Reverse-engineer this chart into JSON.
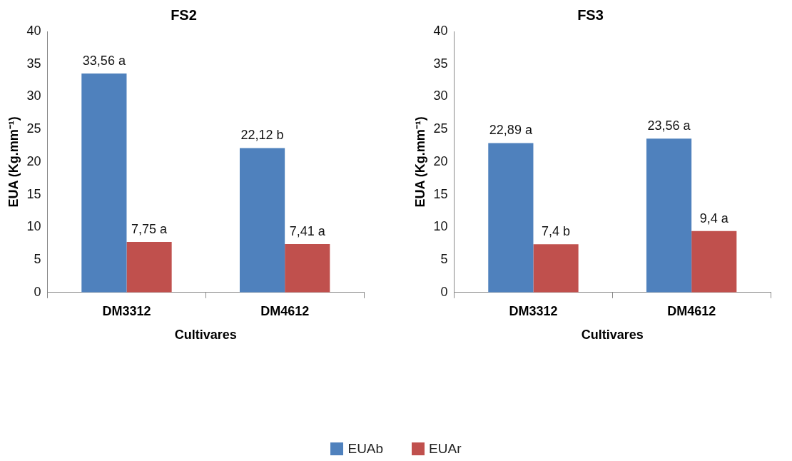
{
  "chart_data": [
    {
      "type": "bar",
      "title": "FS2",
      "xlabel": "Cultivares",
      "ylabel": "EUA (Kg.mm⁻¹)",
      "categories": [
        "DM3312",
        "DM4612"
      ],
      "ylim": [
        0,
        40
      ],
      "yticks": [
        0,
        5,
        10,
        15,
        20,
        25,
        30,
        35,
        40
      ],
      "grid": false,
      "legend": "bottom",
      "series": [
        {
          "name": "EUAb",
          "color": "#4f81bd",
          "values": [
            33.56,
            22.12
          ],
          "value_labels": [
            "33,56 a",
            "22,12 b"
          ]
        },
        {
          "name": "EUAr",
          "color": "#c0504d",
          "values": [
            7.75,
            7.41
          ],
          "value_labels": [
            "7,75 a",
            "7,41 a"
          ]
        }
      ]
    },
    {
      "type": "bar",
      "title": "FS3",
      "xlabel": "Cultivares",
      "ylabel": "EUA (Kg.mm⁻¹)",
      "categories": [
        "DM3312",
        "DM4612"
      ],
      "ylim": [
        0,
        40
      ],
      "yticks": [
        0,
        5,
        10,
        15,
        20,
        25,
        30,
        35,
        40
      ],
      "grid": false,
      "series": [
        {
          "color": "#4f81bd",
          "values": [
            22.89,
            23.56
          ],
          "value_labels": [
            "22,89 a",
            "23,56 a"
          ]
        },
        {
          "color": "#c0504d",
          "values": [
            7.4,
            9.4
          ],
          "value_labels": [
            "7,4 b",
            "9,4 a"
          ]
        }
      ]
    }
  ]
}
